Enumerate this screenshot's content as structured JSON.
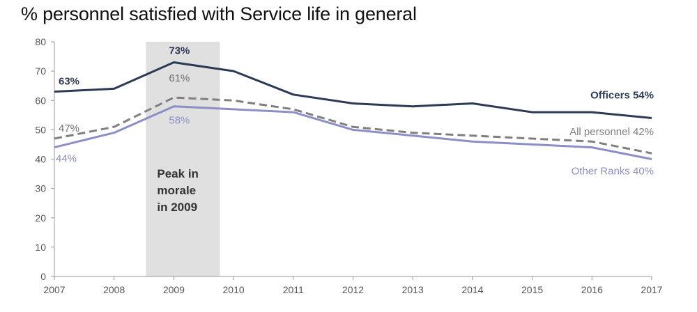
{
  "chart_data": {
    "type": "line",
    "title": "% personnel satisfied with Service life in general",
    "xlabel": "",
    "ylabel": "",
    "x": [
      2007,
      2008,
      2009,
      2010,
      2011,
      2012,
      2013,
      2014,
      2015,
      2016,
      2017
    ],
    "x_labels": [
      "2007",
      "2008",
      "2009",
      "2010",
      "2011",
      "2012",
      "2013",
      "2014",
      "2015",
      "2016",
      "2017"
    ],
    "ylim": [
      0,
      80
    ],
    "y_ticks": [
      "0",
      "10",
      "20",
      "30",
      "40",
      "50",
      "60",
      "70",
      "80"
    ],
    "series": [
      {
        "name": "Officers",
        "values": [
          63,
          64,
          73,
          70,
          62,
          59,
          58,
          59,
          56,
          56,
          54
        ],
        "color": "#2e3a55",
        "dash": false,
        "start_label": "63%",
        "peak_label": "73%",
        "end_label": "Officers  54%"
      },
      {
        "name": "All personnel",
        "values": [
          47,
          51,
          61,
          60,
          57,
          51,
          49,
          48,
          47,
          46,
          42
        ],
        "color": "#7f7f7f",
        "dash": true,
        "start_label": "47%",
        "peak_label": "61%",
        "end_label": "All personnel  42%"
      },
      {
        "name": "Other Ranks",
        "values": [
          44,
          49,
          58,
          57,
          56,
          50,
          48,
          46,
          45,
          44,
          40
        ],
        "color": "#8c8fc7",
        "dash": false,
        "start_label": "44%",
        "peak_label": "58%",
        "end_label": "Other Ranks  40%"
      }
    ],
    "highlight": {
      "year": 2009,
      "lines": [
        "Peak in",
        "morale",
        "in 2009"
      ],
      "color": "#e0e0e0"
    },
    "grid": false
  }
}
